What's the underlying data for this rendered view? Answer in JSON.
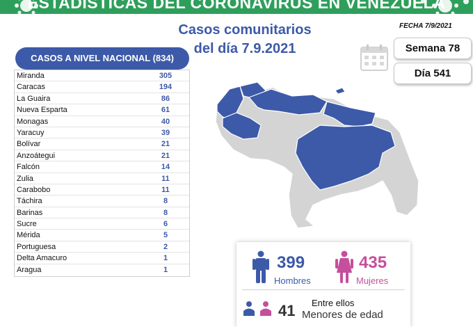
{
  "banner": {
    "title": "ESTADÍSTICAS DEL CORONAVIRUS EN VENEZUELA"
  },
  "main": {
    "title_line1": "Casos comunitarios",
    "title_line2": "del día 7.9.2021"
  },
  "fecha": "FECHA 7/9/2021",
  "semana": "Semana 78",
  "dia": "Día 541",
  "national": {
    "header": "CASOS A NIVEL NACIONAL (834)",
    "rows": [
      {
        "name": "Miranda",
        "value": "305"
      },
      {
        "name": "Caracas",
        "value": "194"
      },
      {
        "name": "La Guaira",
        "value": "86"
      },
      {
        "name": "Nueva Esparta",
        "value": "61"
      },
      {
        "name": "Monagas",
        "value": "40"
      },
      {
        "name": "Yaracuy",
        "value": "39"
      },
      {
        "name": "Bolívar",
        "value": "21"
      },
      {
        "name": "Anzoátegui",
        "value": "21"
      },
      {
        "name": "Falcón",
        "value": "14"
      },
      {
        "name": "Zulia",
        "value": "11"
      },
      {
        "name": "Carabobo",
        "value": "11"
      },
      {
        "name": "Táchira",
        "value": "8"
      },
      {
        "name": "Barinas",
        "value": "8"
      },
      {
        "name": "Sucre",
        "value": "6"
      },
      {
        "name": "Mérida",
        "value": "5"
      },
      {
        "name": "Portuguesa",
        "value": "2"
      },
      {
        "name": "Delta Amacuro",
        "value": "1"
      },
      {
        "name": "Aragua",
        "value": "1"
      }
    ]
  },
  "stats": {
    "men_count": "399",
    "men_label": "Hombres",
    "women_count": "435",
    "women_label": "Mujeres",
    "entre_label": "Entre ellos",
    "minors_count": "41",
    "minors_label": "Menores de edad"
  },
  "colors": {
    "green": "#2e9f5b",
    "blue": "#3d5aa8",
    "pink": "#c54f9c",
    "grey": "#d4d4d4"
  },
  "icons": [
    "virus-icon",
    "calendar-icon",
    "man-icon",
    "woman-icon",
    "child-icons"
  ]
}
